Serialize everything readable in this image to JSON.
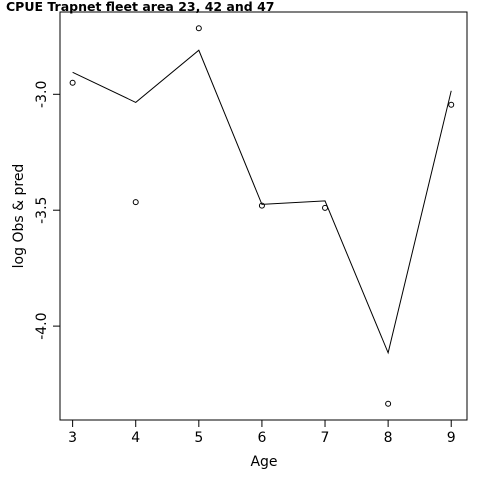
{
  "chart_data": {
    "type": "line",
    "title": "CPUE Trapnet fleet area 23, 42 and 47",
    "xlabel": "Age",
    "ylabel": "log Obs & pred",
    "x": [
      3,
      4,
      5,
      6,
      7,
      8,
      9
    ],
    "x_ticks": [
      "3",
      "4",
      "5",
      "6",
      "7",
      "8",
      "9"
    ],
    "y_ticks": [
      {
        "value": -3.0,
        "label": "-3.0"
      },
      {
        "value": -3.5,
        "label": "-3.5"
      },
      {
        "value": -4.0,
        "label": "-4.0"
      }
    ],
    "xlim": [
      2.8,
      9.25
    ],
    "ylim": [
      -4.405,
      -2.645
    ],
    "grid": false,
    "series": [
      {
        "style": "line",
        "values": [
          -2.905,
          -3.035,
          -2.81,
          -3.475,
          -3.46,
          -4.115,
          -2.985
        ]
      },
      {
        "style": "points",
        "values": [
          -2.95,
          -3.465,
          -2.715,
          -3.48,
          -3.49,
          -4.335,
          -3.045
        ]
      }
    ]
  }
}
